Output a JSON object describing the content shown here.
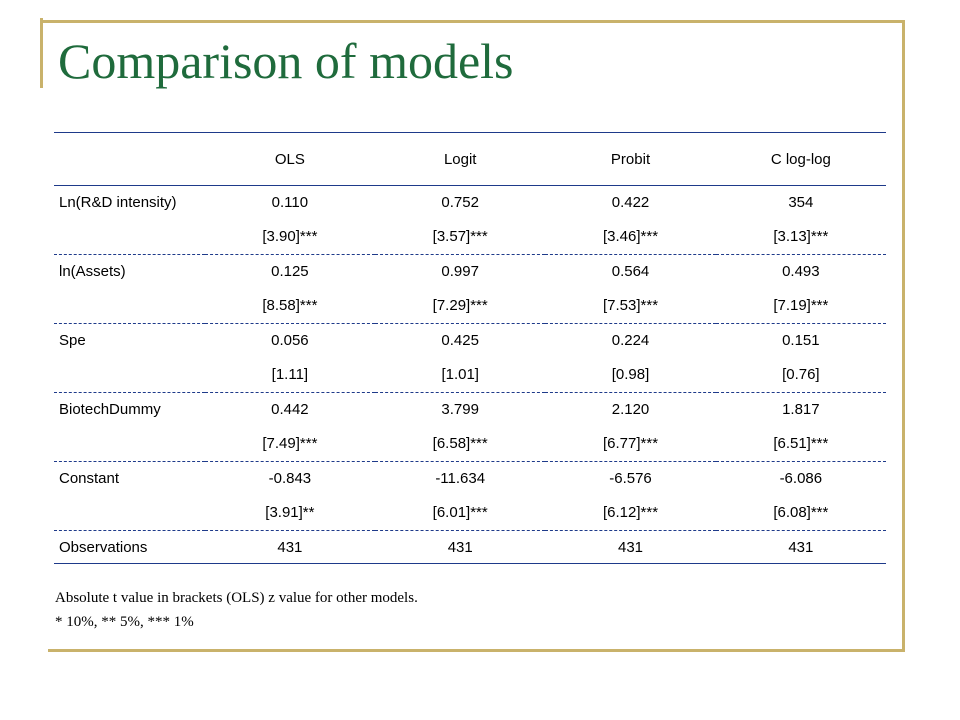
{
  "slide": {
    "title": "Comparison of models",
    "notes": [
      "Absolute t value in brackets (OLS) z value for other models.",
      "* 10%, ** 5%, *** 1%"
    ]
  },
  "table": {
    "columns": [
      "",
      "OLS",
      "Logit",
      "Probit",
      "C log-log"
    ],
    "rows": [
      {
        "variable": "Ln(R&D intensity)",
        "coef": [
          "0.110",
          "0.752",
          "0.422",
          "354"
        ],
        "stat": [
          "[3.90]***",
          "[3.57]***",
          "[3.46]***",
          "[3.13]***"
        ]
      },
      {
        "variable": "ln(Assets)",
        "coef": [
          "0.125",
          "0.997",
          "0.564",
          "0.493"
        ],
        "stat": [
          "[8.58]***",
          "[7.29]***",
          "[7.53]***",
          "[7.19]***"
        ]
      },
      {
        "variable": "Spe",
        "coef": [
          "0.056",
          "0.425",
          "0.224",
          "0.151"
        ],
        "stat": [
          "[1.11]",
          "[1.01]",
          "[0.98]",
          "[0.76]"
        ]
      },
      {
        "variable": "BiotechDummy",
        "coef": [
          "0.442",
          "3.799",
          "2.120",
          "1.817"
        ],
        "stat": [
          "[7.49]***",
          "[6.58]***",
          "[6.77]***",
          "[6.51]***"
        ]
      },
      {
        "variable": "Constant",
        "coef": [
          "-0.843",
          "-11.634",
          "-6.576",
          "-6.086"
        ],
        "stat": [
          "[3.91]**",
          "[6.01]***",
          "[6.12]***",
          "[6.08]***"
        ]
      }
    ],
    "observations": {
      "label": "Observations",
      "values": [
        "431",
        "431",
        "431",
        "431"
      ]
    }
  },
  "colors": {
    "title": "#1f6b3c",
    "frame": "#c9b26b",
    "rule": "#1e3a8a"
  }
}
